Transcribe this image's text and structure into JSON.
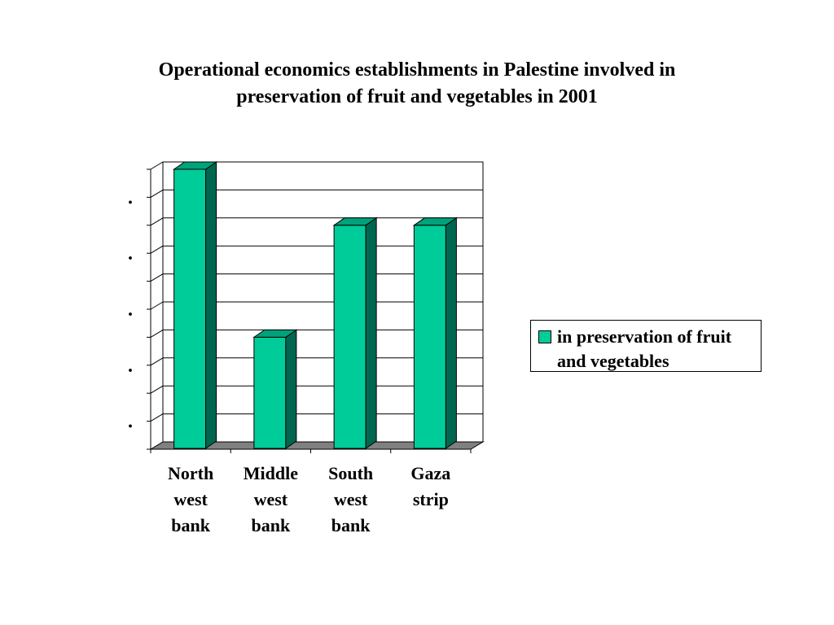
{
  "chart_data": {
    "type": "bar",
    "title_lines": [
      "Operational economics establishments in Palestine involved in",
      "preservation of fruit and vegetables in 2001"
    ],
    "categories": [
      [
        "North",
        "west",
        "bank"
      ],
      [
        "Middle",
        "west",
        "bank"
      ],
      [
        "South",
        "west",
        "bank"
      ],
      [
        "Gaza",
        "strip"
      ]
    ],
    "series": [
      {
        "name": "in preservation of fruit and vegetables",
        "values": [
          10,
          4,
          8,
          8
        ]
      }
    ],
    "ylim": [
      0,
      10
    ],
    "y_tick_labels": [
      ".",
      ".",
      ".",
      ".",
      "."
    ],
    "grid": true,
    "legend_position": "right",
    "view": "3d"
  },
  "colors": {
    "bar_front": "#00cc99",
    "bar_side": "#006650",
    "bar_top": "#00a27a",
    "floor": "#808080",
    "gridline": "#000000"
  }
}
